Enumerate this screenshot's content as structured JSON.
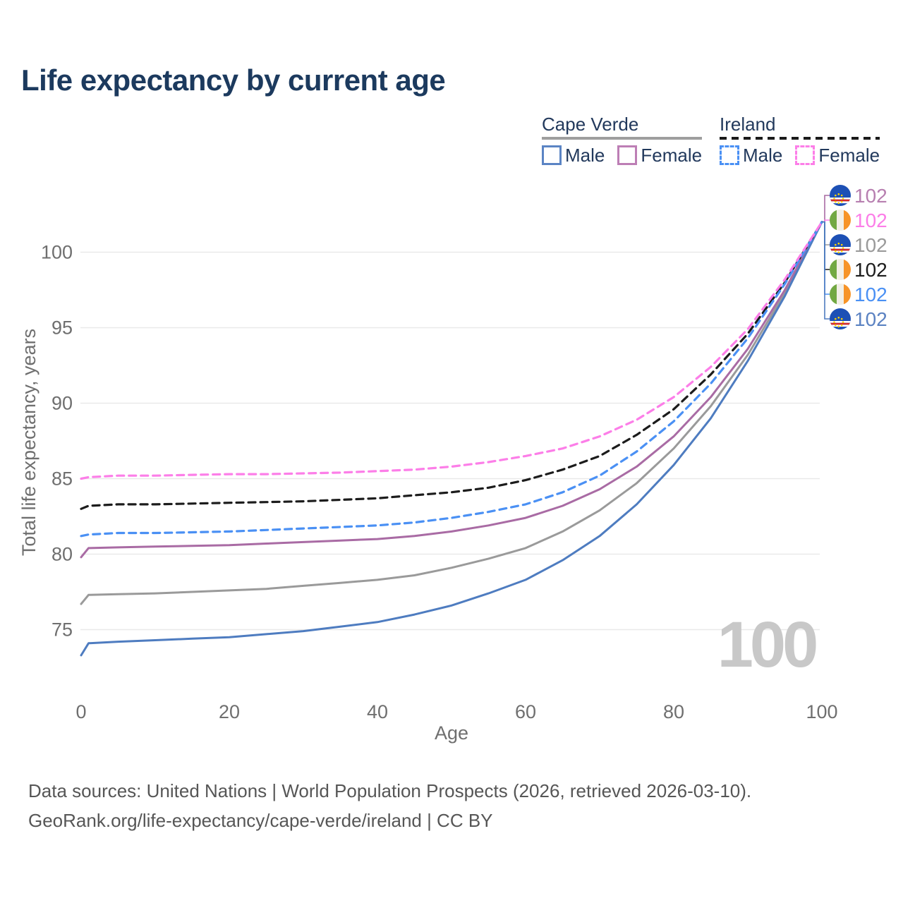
{
  "title": "Life expectancy by current age",
  "watermark": "100",
  "legend": {
    "groups": [
      {
        "id": "cape-verde",
        "label": "Cape Verde",
        "line_style": "solid",
        "rule_color": "#9e9e9e",
        "items": [
          {
            "label": "Male",
            "color": "#5b84c4",
            "dashed": false
          },
          {
            "label": "Female",
            "color": "#bd7eb5",
            "dashed": false
          }
        ]
      },
      {
        "id": "ireland",
        "label": "Ireland",
        "line_style": "dashed",
        "rule_color": "#1a1a1a",
        "items": [
          {
            "label": "Male",
            "color": "#4a90f4",
            "dashed": true
          },
          {
            "label": "Female",
            "color": "#fc7ee8",
            "dashed": true
          }
        ]
      }
    ]
  },
  "footer": {
    "line1": "Data sources: United Nations | World Population Prospects (2026, retrieved 2026-03-10).",
    "line2": "GeoRank.org/life-expectancy/cape-verde/ireland | CC BY"
  },
  "colors": {
    "title": "#1c3a5e",
    "axis_text": "#6f6f6f",
    "grid": "#e9e9e9",
    "watermark": "#c8c8c8",
    "footer_text": "#565656",
    "cape_verde_male": "#4e7cc0",
    "cape_verde_female": "#a96ba4",
    "cape_verde_total": "#9a9a9a",
    "ireland_male": "#4a90f4",
    "ireland_female": "#fc7ee8",
    "ireland_total": "#1c1c1c"
  },
  "chart_data": {
    "type": "line",
    "title": "Life expectancy by current age",
    "xlabel": "Age",
    "ylabel": "Total life expectancy, years",
    "xlim": [
      0,
      100
    ],
    "ylim": [
      73,
      103
    ],
    "x_ticks": [
      0,
      20,
      40,
      60,
      80,
      100
    ],
    "y_ticks": [
      75,
      80,
      85,
      90,
      95,
      100
    ],
    "grid": "horizontal",
    "legend_position": "top-right",
    "x": [
      0,
      1,
      5,
      10,
      15,
      20,
      25,
      30,
      35,
      40,
      45,
      50,
      55,
      60,
      65,
      70,
      75,
      80,
      85,
      90,
      95,
      100
    ],
    "series": [
      {
        "id": "cape-verde-total",
        "name": "Cape Verde",
        "country": "Cape Verde",
        "sex": "Total",
        "color": "#9a9a9a",
        "label_color": "#9a9a9a",
        "dashed": false,
        "flag": "cape-verde",
        "values": [
          76.7,
          77.3,
          77.35,
          77.4,
          77.5,
          77.6,
          77.7,
          77.9,
          78.1,
          78.3,
          78.6,
          79.1,
          79.7,
          80.4,
          81.5,
          82.9,
          84.7,
          87.0,
          89.8,
          93.2,
          97.3,
          102
        ]
      },
      {
        "id": "cape-verde-female",
        "name": "Cape Verde Female",
        "country": "Cape Verde",
        "sex": "Female",
        "color": "#a96ba4",
        "label_color": "#b77fb0",
        "dashed": false,
        "flag": "cape-verde",
        "values": [
          79.8,
          80.4,
          80.45,
          80.5,
          80.55,
          80.6,
          80.7,
          80.8,
          80.9,
          81.0,
          81.2,
          81.5,
          81.9,
          82.4,
          83.2,
          84.3,
          85.8,
          87.8,
          90.4,
          93.6,
          97.5,
          102
        ]
      },
      {
        "id": "cape-verde-male",
        "name": "Cape Verde Male",
        "country": "Cape Verde",
        "sex": "Male",
        "color": "#4e7cc0",
        "label_color": "#5b82c2",
        "dashed": false,
        "flag": "cape-verde",
        "values": [
          73.3,
          74.1,
          74.2,
          74.3,
          74.4,
          74.5,
          74.7,
          74.9,
          75.2,
          75.5,
          76.0,
          76.6,
          77.4,
          78.3,
          79.6,
          81.2,
          83.3,
          85.9,
          89.0,
          92.8,
          97.1,
          102
        ]
      },
      {
        "id": "ireland-total",
        "name": "Ireland",
        "country": "Ireland",
        "sex": "Total",
        "color": "#1c1c1c",
        "label_color": "#1c1c1c",
        "dashed": true,
        "flag": "ireland",
        "values": [
          83.0,
          83.2,
          83.3,
          83.3,
          83.35,
          83.4,
          83.45,
          83.5,
          83.6,
          83.7,
          83.9,
          84.1,
          84.4,
          84.9,
          85.6,
          86.5,
          87.9,
          89.6,
          91.9,
          94.6,
          98.0,
          102
        ]
      },
      {
        "id": "ireland-male",
        "name": "Ireland Male",
        "country": "Ireland",
        "sex": "Male",
        "color": "#4a90f4",
        "label_color": "#4a90f4",
        "dashed": true,
        "flag": "ireland",
        "values": [
          81.2,
          81.3,
          81.4,
          81.4,
          81.45,
          81.5,
          81.6,
          81.7,
          81.8,
          81.9,
          82.1,
          82.4,
          82.8,
          83.3,
          84.1,
          85.2,
          86.8,
          88.8,
          91.3,
          94.3,
          97.9,
          102
        ]
      },
      {
        "id": "ireland-female",
        "name": "Ireland Female",
        "country": "Ireland",
        "sex": "Female",
        "color": "#fc7ee8",
        "label_color": "#fc7ee8",
        "dashed": true,
        "flag": "ireland",
        "values": [
          85.0,
          85.1,
          85.2,
          85.2,
          85.25,
          85.3,
          85.3,
          85.35,
          85.4,
          85.5,
          85.6,
          85.8,
          86.1,
          86.5,
          87.0,
          87.8,
          88.9,
          90.4,
          92.4,
          94.9,
          98.2,
          102
        ]
      }
    ],
    "right_labels": [
      {
        "series": "cape-verde-female",
        "value": "102"
      },
      {
        "series": "ireland-female",
        "value": "102"
      },
      {
        "series": "cape-verde-total",
        "value": "102"
      },
      {
        "series": "ireland-total",
        "value": "102"
      },
      {
        "series": "ireland-male",
        "value": "102"
      },
      {
        "series": "cape-verde-male",
        "value": "102"
      }
    ],
    "end_age": 100,
    "end_value": 102
  }
}
